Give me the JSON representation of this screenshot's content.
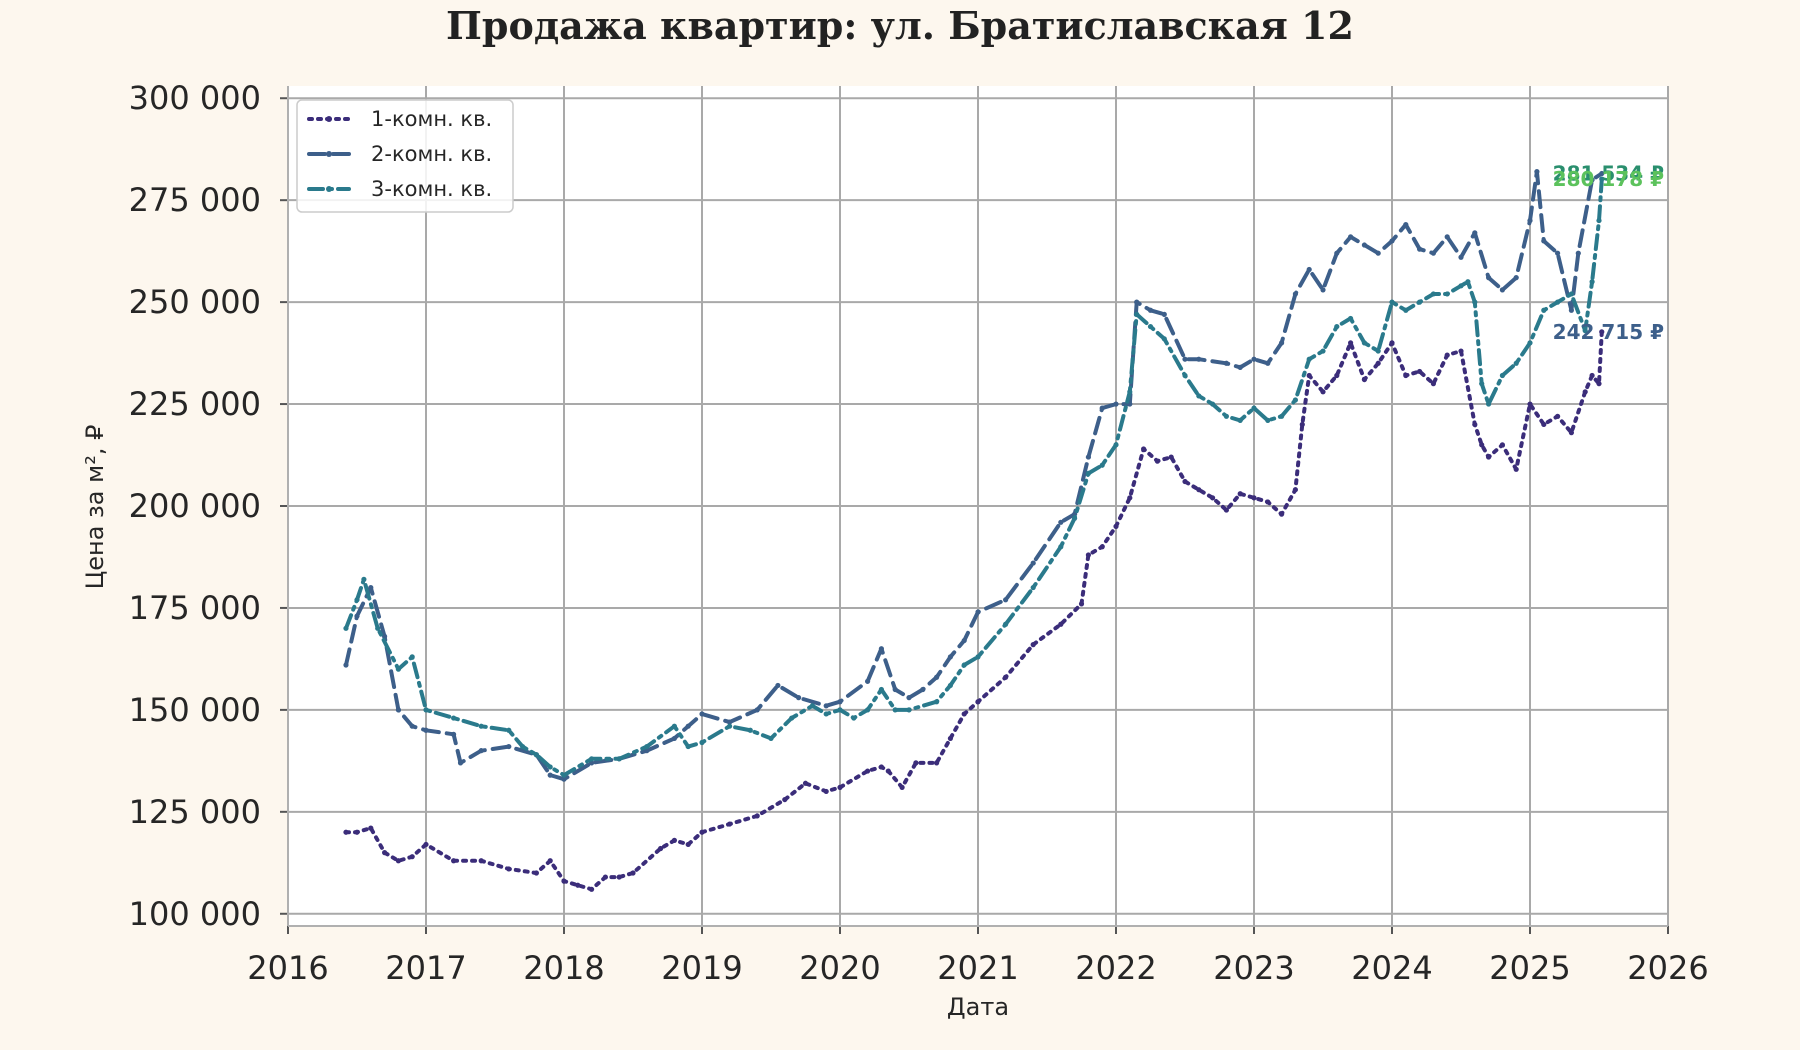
{
  "chart_data": {
    "type": "line",
    "title": "Продажа квартир: ул. Братиславская 12",
    "xlabel": "Дата",
    "ylabel": "Цена за м², ₽",
    "xlim": [
      2016,
      2026
    ],
    "ylim": [
      97000,
      303000
    ],
    "x_ticks": [
      2016,
      2017,
      2018,
      2019,
      2020,
      2021,
      2022,
      2023,
      2024,
      2025,
      2026
    ],
    "x_tick_labels": [
      "2016",
      "2017",
      "2018",
      "2019",
      "2020",
      "2021",
      "2022",
      "2023",
      "2024",
      "2025",
      "2026"
    ],
    "y_ticks": [
      100000,
      125000,
      150000,
      175000,
      200000,
      225000,
      250000,
      275000,
      300000
    ],
    "y_tick_labels": [
      "100 000",
      "125 000",
      "150 000",
      "175 000",
      "200 000",
      "225 000",
      "250 000",
      "275 000",
      "300 000"
    ],
    "grid": true,
    "legend_position": "top-left",
    "series": [
      {
        "name": "1-комн. кв.",
        "color": "#3b2d7a",
        "style": "dotted",
        "x": [
          2016.42,
          2016.5,
          2016.6,
          2016.7,
          2016.8,
          2016.9,
          2017.0,
          2017.2,
          2017.4,
          2017.6,
          2017.8,
          2017.9,
          2018.0,
          2018.1,
          2018.2,
          2018.3,
          2018.4,
          2018.5,
          2018.7,
          2018.8,
          2018.9,
          2019.0,
          2019.2,
          2019.4,
          2019.6,
          2019.75,
          2019.9,
          2020.0,
          2020.2,
          2020.3,
          2020.35,
          2020.45,
          2020.55,
          2020.7,
          2020.8,
          2020.9,
          2021.0,
          2021.2,
          2021.4,
          2021.6,
          2021.75,
          2021.8,
          2021.9,
          2022.0,
          2022.1,
          2022.2,
          2022.3,
          2022.4,
          2022.5,
          2022.6,
          2022.7,
          2022.8,
          2022.9,
          2023.0,
          2023.1,
          2023.2,
          2023.3,
          2023.35,
          2023.4,
          2023.5,
          2023.6,
          2023.7,
          2023.8,
          2023.9,
          2024.0,
          2024.1,
          2024.2,
          2024.3,
          2024.4,
          2024.5,
          2024.6,
          2024.65,
          2024.7,
          2024.8,
          2024.9,
          2025.0,
          2025.1,
          2025.2,
          2025.3,
          2025.4,
          2025.45,
          2025.5,
          2025.52
        ],
        "y": [
          120000,
          120000,
          121000,
          115000,
          113000,
          114000,
          117000,
          113000,
          113000,
          111000,
          110000,
          113000,
          108000,
          107000,
          106000,
          109000,
          109000,
          110000,
          116000,
          118000,
          117000,
          120000,
          122000,
          124000,
          128000,
          132000,
          130000,
          131000,
          135000,
          136000,
          135000,
          131000,
          137000,
          137000,
          143000,
          149000,
          152000,
          158000,
          166000,
          171000,
          176000,
          188000,
          190000,
          195000,
          202000,
          214000,
          211000,
          212000,
          206000,
          204000,
          202000,
          199000,
          203000,
          202000,
          201000,
          198000,
          204000,
          220000,
          232000,
          228000,
          232000,
          240000,
          231000,
          235000,
          240000,
          232000,
          233000,
          230000,
          237000,
          238000,
          220000,
          215000,
          212000,
          215000,
          209000,
          225000,
          220000,
          222000,
          218000,
          228000,
          232000,
          230000,
          242715
        ]
      },
      {
        "name": "2-комн. кв.",
        "color": "#3d5f8a",
        "style": "dashed",
        "x": [
          2016.42,
          2016.5,
          2016.6,
          2016.7,
          2016.8,
          2016.9,
          2017.0,
          2017.2,
          2017.25,
          2017.4,
          2017.6,
          2017.8,
          2017.9,
          2018.0,
          2018.2,
          2018.4,
          2018.6,
          2018.8,
          2018.9,
          2019.0,
          2019.2,
          2019.4,
          2019.55,
          2019.7,
          2019.9,
          2020.0,
          2020.2,
          2020.3,
          2020.4,
          2020.5,
          2020.6,
          2020.7,
          2020.8,
          2020.9,
          2021.0,
          2021.2,
          2021.4,
          2021.6,
          2021.7,
          2021.8,
          2021.9,
          2022.0,
          2022.1,
          2022.15,
          2022.25,
          2022.35,
          2022.5,
          2022.6,
          2022.8,
          2022.9,
          2023.0,
          2023.1,
          2023.2,
          2023.3,
          2023.4,
          2023.5,
          2023.6,
          2023.7,
          2023.8,
          2023.9,
          2024.0,
          2024.1,
          2024.2,
          2024.3,
          2024.4,
          2024.5,
          2024.6,
          2024.7,
          2024.8,
          2024.9,
          2025.0,
          2025.05,
          2025.1,
          2025.2,
          2025.3,
          2025.35,
          2025.45,
          2025.52
        ],
        "y": [
          161000,
          173000,
          180000,
          168000,
          150000,
          146000,
          145000,
          144000,
          137000,
          140000,
          141000,
          139000,
          134000,
          133000,
          137000,
          138000,
          140000,
          143000,
          146000,
          149000,
          147000,
          150000,
          156000,
          153000,
          151000,
          152000,
          157000,
          165000,
          155000,
          153000,
          155000,
          158000,
          163000,
          167000,
          174000,
          177000,
          186000,
          196000,
          198000,
          212000,
          224000,
          225000,
          225000,
          250000,
          248000,
          247000,
          236000,
          236000,
          235000,
          234000,
          236000,
          235000,
          240000,
          252000,
          258000,
          253000,
          262000,
          266000,
          264000,
          262000,
          265000,
          269000,
          263000,
          262000,
          266000,
          261000,
          267000,
          256000,
          253000,
          256000,
          270000,
          282000,
          265000,
          262000,
          248000,
          262000,
          280000,
          281534
        ]
      },
      {
        "name": "3-комн. кв.",
        "color": "#2a7a8c",
        "style": "dashdot",
        "x": [
          2016.42,
          2016.5,
          2016.55,
          2016.65,
          2016.8,
          2016.9,
          2017.0,
          2017.2,
          2017.4,
          2017.6,
          2017.7,
          2017.8,
          2017.9,
          2018.0,
          2018.2,
          2018.4,
          2018.6,
          2018.8,
          2018.9,
          2019.0,
          2019.2,
          2019.35,
          2019.5,
          2019.65,
          2019.8,
          2019.9,
          2020.0,
          2020.1,
          2020.2,
          2020.3,
          2020.4,
          2020.5,
          2020.7,
          2020.8,
          2020.9,
          2021.0,
          2021.2,
          2021.4,
          2021.6,
          2021.7,
          2021.8,
          2021.9,
          2022.0,
          2022.1,
          2022.15,
          2022.25,
          2022.35,
          2022.5,
          2022.6,
          2022.7,
          2022.8,
          2022.9,
          2023.0,
          2023.1,
          2023.2,
          2023.3,
          2023.4,
          2023.5,
          2023.6,
          2023.7,
          2023.8,
          2023.9,
          2024.0,
          2024.1,
          2024.2,
          2024.3,
          2024.4,
          2024.5,
          2024.55,
          2024.6,
          2024.65,
          2024.7,
          2024.8,
          2024.9,
          2025.0,
          2025.1,
          2025.2,
          2025.3,
          2025.4,
          2025.45,
          2025.5,
          2025.52
        ],
        "y": [
          170000,
          177000,
          182000,
          170000,
          160000,
          163000,
          150000,
          148000,
          146000,
          145000,
          141000,
          139000,
          136000,
          134000,
          138000,
          138000,
          141000,
          146000,
          141000,
          142000,
          146000,
          145000,
          143000,
          148000,
          151000,
          149000,
          150000,
          148000,
          150000,
          155000,
          150000,
          150000,
          152000,
          156000,
          161000,
          163000,
          171000,
          180000,
          190000,
          197000,
          208000,
          210000,
          215000,
          228000,
          247000,
          244000,
          241000,
          232000,
          227000,
          225000,
          222000,
          221000,
          224000,
          221000,
          222000,
          226000,
          236000,
          238000,
          244000,
          246000,
          240000,
          238000,
          250000,
          248000,
          250000,
          252000,
          252000,
          254000,
          255000,
          250000,
          230000,
          225000,
          232000,
          235000,
          240000,
          248000,
          250000,
          252000,
          243000,
          255000,
          270000,
          280178
        ]
      }
    ],
    "end_labels": [
      {
        "series": "2-комн. кв.",
        "text": "281 534 ₽",
        "value": 281534,
        "color": "#2a8f6e"
      },
      {
        "series": "3-комн. кв.",
        "text": "280 178 ₽",
        "value": 280178,
        "color": "#5cc25c"
      },
      {
        "series": "1-комн. кв.",
        "text": "242 715 ₽",
        "value": 242715,
        "color": "#3d5f8a"
      }
    ]
  }
}
